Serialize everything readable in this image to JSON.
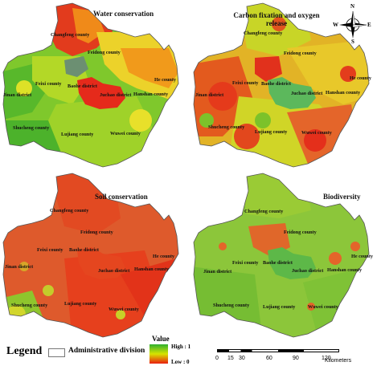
{
  "panels": [
    {
      "title": "Water conservation",
      "scheme": "water"
    },
    {
      "title": "Carbon fixation and oxygen release",
      "scheme": "carbon"
    },
    {
      "title": "Soil conservation",
      "scheme": "soil"
    },
    {
      "title": "Biodiversity",
      "scheme": "bio"
    }
  ],
  "place_labels": {
    "changfeng": "Changfeng county",
    "feidong": "Feidong county",
    "feixi": "Feixi county",
    "baohe": "Baohe district",
    "jinan": "Jinan district",
    "juchao": "Juchao district",
    "hanshan": "Hanshan county",
    "he": "He county",
    "shucheng": "Shucheng county",
    "lujiang": "Lujiang county",
    "wuwei": "Wuwei county"
  },
  "compass": {
    "n": "N",
    "s": "S",
    "e": "E",
    "w": "W"
  },
  "legend": {
    "title": "Legend",
    "boundary_label": "Administrative division",
    "value_title": "Value",
    "high_label": "High : 1",
    "low_label": "Low : 0",
    "colors": {
      "high": "#2fb02f",
      "mid": "#d7e400",
      "low": "#e91d0f"
    }
  },
  "scale": {
    "ticks": [
      "0",
      "15",
      "30",
      "60",
      "90",
      "120"
    ],
    "unit": "Kilometers"
  }
}
